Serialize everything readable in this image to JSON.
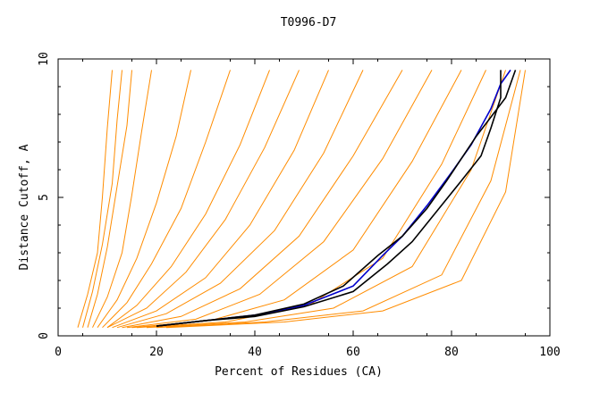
{
  "chart_data": {
    "type": "line",
    "title": "T0996-D7",
    "xlabel": "Percent of Residues (CA)",
    "ylabel": "Distance Cutoff, A",
    "xlim": [
      0,
      100
    ],
    "ylim": [
      0,
      10
    ],
    "x_ticks": [
      "0",
      "20",
      "40",
      "60",
      "80",
      "100"
    ],
    "y_ticks": [
      "0",
      "5",
      "10"
    ],
    "grid": false,
    "colors": {
      "bundle": "#ff8c00",
      "highlight_1": "#000000",
      "highlight_2": "#0000cc",
      "axes": "#000000"
    },
    "bundle_note_values_in_data_units": true,
    "series": [
      {
        "x": [
          20,
          30,
          40,
          50,
          60,
          66,
          70,
          75,
          80,
          84,
          88,
          90,
          92
        ],
        "y": [
          0.35,
          0.55,
          0.75,
          1.1,
          1.8,
          2.9,
          3.6,
          4.7,
          5.9,
          6.9,
          8.2,
          9.1,
          9.6
        ],
        "color": "#0000cc"
      },
      {
        "x": [
          20,
          30,
          40,
          50,
          60,
          67,
          72,
          77,
          82,
          86,
          88,
          90,
          90
        ],
        "y": [
          0.35,
          0.55,
          0.7,
          1.05,
          1.6,
          2.6,
          3.4,
          4.5,
          5.6,
          6.5,
          7.5,
          8.6,
          9.6
        ],
        "color": "#000000"
      },
      {
        "x": [
          20,
          30,
          40,
          50,
          58,
          65,
          70,
          75,
          79,
          82,
          85,
          88,
          91,
          93
        ],
        "y": [
          0.35,
          0.55,
          0.75,
          1.15,
          1.8,
          2.9,
          3.6,
          4.6,
          5.6,
          6.4,
          7.2,
          7.9,
          8.6,
          9.6
        ],
        "color": "#000000"
      },
      {
        "x": [
          4,
          6,
          8,
          9,
          10,
          11
        ],
        "y": [
          0.3,
          1.5,
          3.0,
          5.0,
          7.5,
          9.6
        ],
        "color": "#ff8c00"
      },
      {
        "x": [
          5,
          7,
          9,
          11,
          12,
          13
        ],
        "y": [
          0.3,
          1.6,
          3.3,
          5.5,
          7.8,
          9.6
        ],
        "color": "#ff8c00"
      },
      {
        "x": [
          6,
          8,
          10,
          12,
          14,
          15
        ],
        "y": [
          0.3,
          1.5,
          3.2,
          5.4,
          7.6,
          9.6
        ],
        "color": "#ff8c00"
      },
      {
        "x": [
          7,
          10,
          13,
          15,
          17,
          19
        ],
        "y": [
          0.3,
          1.4,
          3.0,
          5.1,
          7.4,
          9.6
        ],
        "color": "#ff8c00"
      },
      {
        "x": [
          8,
          12,
          16,
          20,
          24,
          27
        ],
        "y": [
          0.3,
          1.3,
          2.8,
          4.8,
          7.2,
          9.6
        ],
        "color": "#ff8c00"
      },
      {
        "x": [
          9,
          14,
          19,
          25,
          30,
          35
        ],
        "y": [
          0.3,
          1.2,
          2.6,
          4.6,
          7.0,
          9.6
        ],
        "color": "#ff8c00"
      },
      {
        "x": [
          10,
          16,
          23,
          30,
          37,
          43
        ],
        "y": [
          0.3,
          1.1,
          2.5,
          4.4,
          6.9,
          9.6
        ],
        "color": "#ff8c00"
      },
      {
        "x": [
          10,
          18,
          26,
          34,
          42,
          49
        ],
        "y": [
          0.3,
          1.0,
          2.3,
          4.2,
          6.8,
          9.6
        ],
        "color": "#ff8c00"
      },
      {
        "x": [
          11,
          20,
          30,
          39,
          48,
          55
        ],
        "y": [
          0.3,
          0.9,
          2.1,
          4.0,
          6.7,
          9.6
        ],
        "color": "#ff8c00"
      },
      {
        "x": [
          12,
          22,
          33,
          44,
          54,
          62
        ],
        "y": [
          0.3,
          0.8,
          1.9,
          3.8,
          6.6,
          9.6
        ],
        "color": "#ff8c00"
      },
      {
        "x": [
          13,
          25,
          37,
          49,
          60,
          70
        ],
        "y": [
          0.3,
          0.7,
          1.7,
          3.6,
          6.5,
          9.6
        ],
        "color": "#ff8c00"
      },
      {
        "x": [
          14,
          28,
          41,
          54,
          66,
          76
        ],
        "y": [
          0.3,
          0.6,
          1.5,
          3.4,
          6.4,
          9.6
        ],
        "color": "#ff8c00"
      },
      {
        "x": [
          15,
          31,
          46,
          60,
          72,
          82
        ],
        "y": [
          0.3,
          0.55,
          1.3,
          3.1,
          6.3,
          9.6
        ],
        "color": "#ff8c00"
      },
      {
        "x": [
          16,
          34,
          51,
          66,
          78,
          87
        ],
        "y": [
          0.3,
          0.5,
          1.1,
          2.8,
          6.2,
          9.6
        ],
        "color": "#ff8c00"
      },
      {
        "x": [
          18,
          38,
          56,
          72,
          84,
          91
        ],
        "y": [
          0.3,
          0.5,
          1.0,
          2.5,
          6.0,
          9.6
        ],
        "color": "#ff8c00"
      },
      {
        "x": [
          20,
          42,
          62,
          78,
          88,
          94
        ],
        "y": [
          0.3,
          0.5,
          0.9,
          2.2,
          5.6,
          9.6
        ],
        "color": "#ff8c00"
      },
      {
        "x": [
          22,
          46,
          66,
          82,
          91,
          95
        ],
        "y": [
          0.3,
          0.5,
          0.9,
          2.0,
          5.2,
          9.6
        ],
        "color": "#ff8c00"
      }
    ]
  }
}
